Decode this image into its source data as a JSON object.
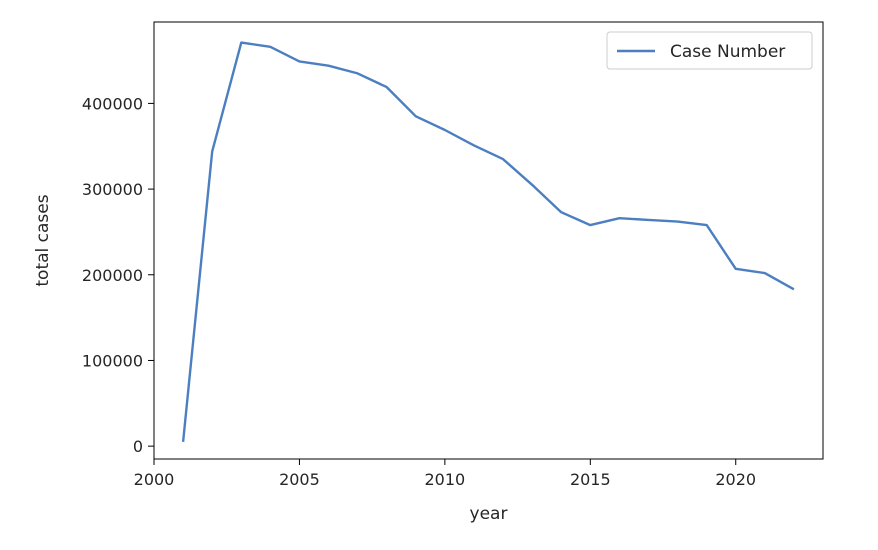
{
  "chart_data": {
    "type": "line",
    "title": "",
    "xlabel": "year",
    "ylabel": "total cases",
    "xlim": [
      2000,
      2023
    ],
    "ylim": [
      -15000,
      495000
    ],
    "xticks": [
      2000,
      2005,
      2010,
      2015,
      2020
    ],
    "yticks": [
      0,
      100000,
      200000,
      300000,
      400000
    ],
    "grid": false,
    "legend_position": "top-right",
    "series": [
      {
        "name": "Case Number",
        "color": "#4c7fc0",
        "x": [
          2001,
          2002,
          2003,
          2004,
          2005,
          2006,
          2007,
          2008,
          2009,
          2010,
          2011,
          2012,
          2013,
          2014,
          2015,
          2016,
          2017,
          2018,
          2019,
          2020,
          2021,
          2022
        ],
        "values": [
          5000,
          344000,
          471000,
          466000,
          449000,
          444000,
          435000,
          419000,
          385000,
          369000,
          351000,
          335000,
          305000,
          273000,
          258000,
          266000,
          264000,
          262000,
          258000,
          207000,
          202000,
          183000
        ]
      }
    ]
  }
}
